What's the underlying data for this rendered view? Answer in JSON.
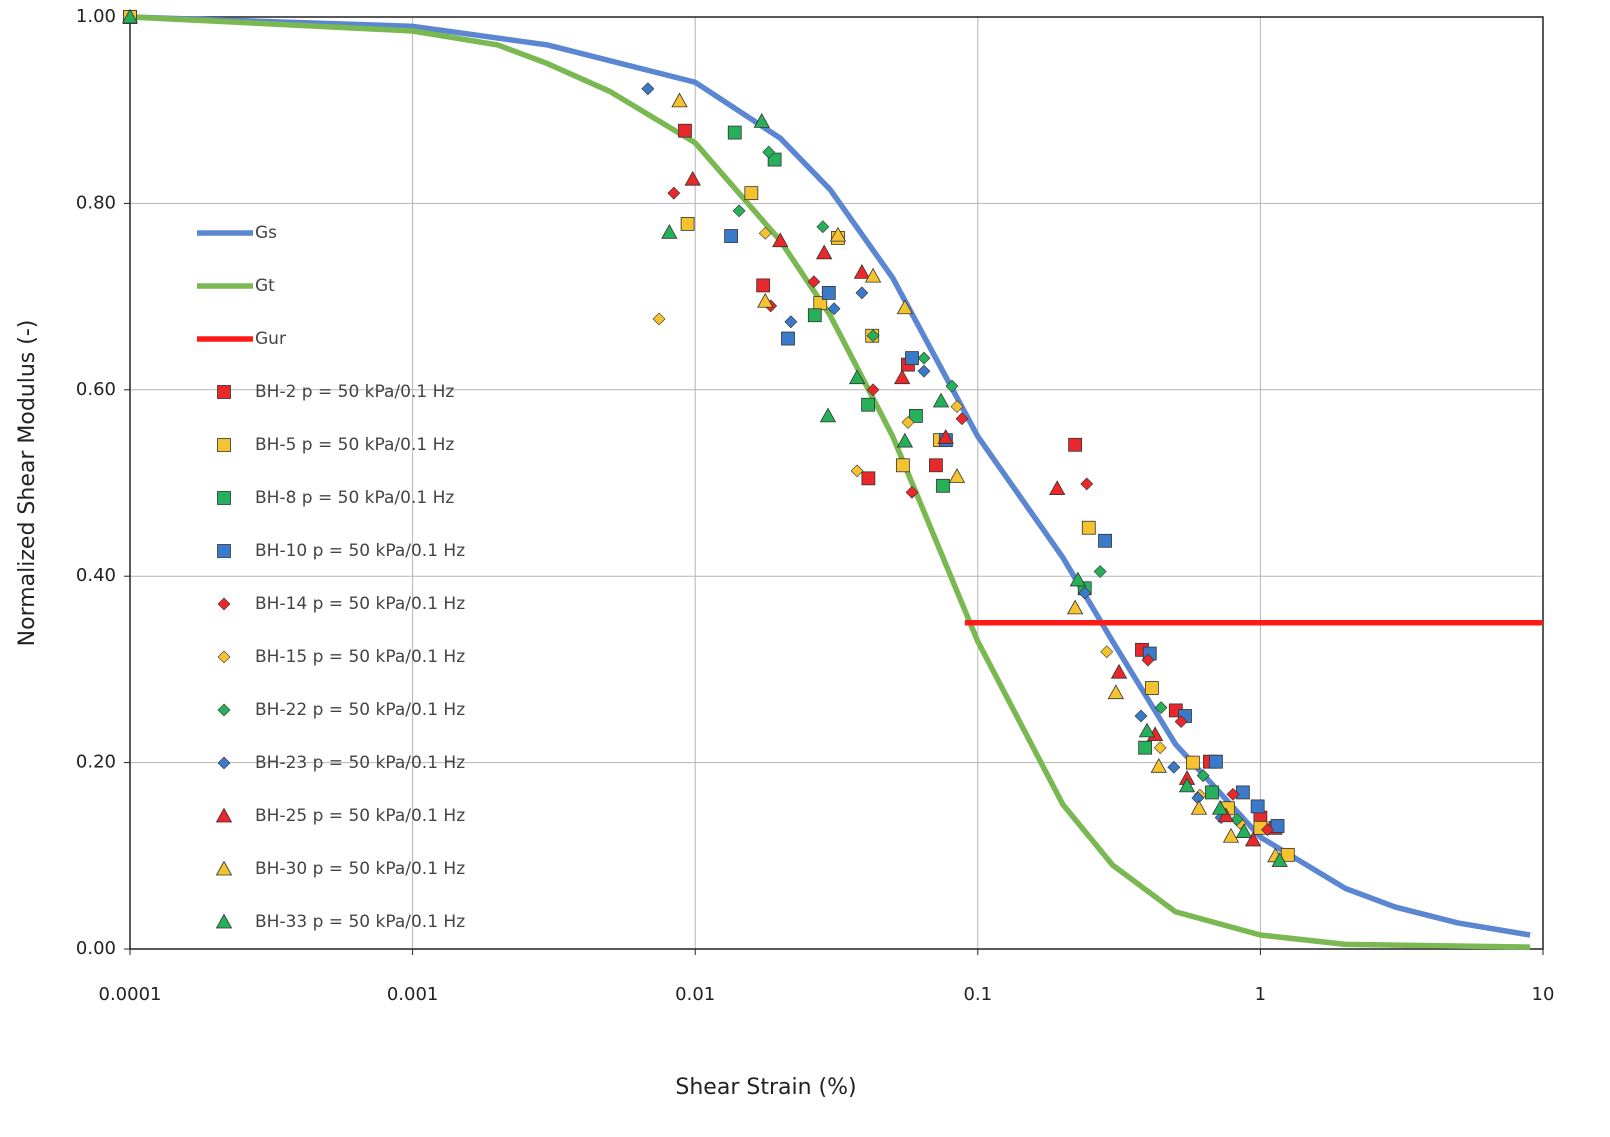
{
  "chart_data": {
    "type": "scatter",
    "x_label": "Shear Strain (%)",
    "y_label": "Normalized Shear Modulus (-)",
    "x_scale": "log",
    "xlim": [
      0.0001,
      10
    ],
    "xticks": [
      0.0001,
      0.001,
      0.01,
      0.1,
      1,
      10
    ],
    "ylim": [
      0,
      1
    ],
    "yticks": [
      {
        "value": 0,
        "label": "0.00"
      },
      {
        "value": 0.2,
        "label": "0.20"
      },
      {
        "value": 0.4,
        "label": "0.40"
      },
      {
        "value": 0.6,
        "label": "0.60"
      },
      {
        "value": 0.8,
        "label": "0.80"
      },
      {
        "value": 1,
        "label": "1.00"
      }
    ],
    "grid": true,
    "legend": "left",
    "series": [
      {
        "name": "Gs",
        "type": "line",
        "color": "#5b86d1",
        "x": [
          0.0001,
          0.001,
          0.003,
          0.01,
          0.02,
          0.03,
          0.05,
          0.1,
          0.2,
          0.3,
          0.5,
          1,
          2,
          3,
          5,
          9
        ],
        "values": [
          1.0,
          0.99,
          0.97,
          0.93,
          0.87,
          0.815,
          0.72,
          0.55,
          0.42,
          0.33,
          0.22,
          0.12,
          0.065,
          0.045,
          0.028,
          0.015
        ]
      },
      {
        "name": "Gt",
        "type": "line",
        "color": "#7ab852",
        "x": [
          0.0001,
          0.001,
          0.002,
          0.003,
          0.005,
          0.01,
          0.02,
          0.03,
          0.05,
          0.1,
          0.2,
          0.3,
          0.5,
          1,
          2,
          9
        ],
        "values": [
          1.0,
          0.985,
          0.97,
          0.95,
          0.92,
          0.865,
          0.76,
          0.68,
          0.55,
          0.33,
          0.155,
          0.09,
          0.04,
          0.015,
          0.005,
          0.002
        ]
      },
      {
        "name": "Gur",
        "type": "line",
        "color": "#ff1a1a",
        "x": [
          0.09,
          10
        ],
        "values": [
          0.35,
          0.35
        ]
      },
      {
        "name": "BH-2 p = 50 kPa/0.1 Hz",
        "type": "scatter",
        "marker": "square",
        "color": "#e8282a",
        "x": [
          0.0001,
          0.0092,
          0.0174,
          0.041,
          0.0566,
          0.0711,
          0.221,
          0.381,
          0.502,
          0.663,
          1.0,
          1.13
        ],
        "values": [
          1.0,
          0.878,
          0.712,
          0.505,
          0.627,
          0.519,
          0.541,
          0.321,
          0.256,
          0.201,
          0.141,
          0.13
        ]
      },
      {
        "name": "BH-5 p = 50 kPa/0.1 Hz",
        "type": "scatter",
        "marker": "square",
        "color": "#f5c230",
        "x": [
          0.0001,
          0.0094,
          0.0158,
          0.032,
          0.0277,
          0.0423,
          0.0543,
          0.0735,
          0.247,
          0.413,
          0.577,
          0.768,
          1.0,
          1.25
        ],
        "values": [
          1.0,
          0.778,
          0.811,
          0.763,
          0.693,
          0.658,
          0.519,
          0.546,
          0.452,
          0.28,
          0.2,
          0.151,
          0.13,
          0.101
        ]
      },
      {
        "name": "BH-8 p = 50 kPa/0.1 Hz",
        "type": "scatter",
        "marker": "square",
        "color": "#27b05a",
        "x": [
          0.0138,
          0.0191,
          0.0265,
          0.0409,
          0.0604,
          0.0753,
          0.239,
          0.391,
          0.674
        ],
        "values": [
          0.876,
          0.847,
          0.68,
          0.584,
          0.572,
          0.497,
          0.387,
          0.216,
          0.168
        ]
      },
      {
        "name": "BH-10 p = 50 kPa/0.1 Hz",
        "type": "scatter",
        "marker": "square",
        "color": "#3b7ac9",
        "x": [
          0.0134,
          0.0213,
          0.0297,
          0.0585,
          0.0771,
          0.282,
          0.406,
          0.541,
          0.696,
          0.867,
          0.978,
          1.15
        ],
        "values": [
          0.765,
          0.655,
          0.704,
          0.634,
          0.546,
          0.438,
          0.317,
          0.25,
          0.201,
          0.168,
          0.153,
          0.132
        ]
      },
      {
        "name": "BH-14 p = 50 kPa/0.1 Hz",
        "type": "scatter",
        "marker": "diamond",
        "color": "#e8282a",
        "x": [
          0.0084,
          0.0185,
          0.0263,
          0.0426,
          0.0585,
          0.0879,
          0.243,
          0.4,
          0.524,
          0.8,
          1.06
        ],
        "values": [
          0.811,
          0.69,
          0.716,
          0.6,
          0.49,
          0.569,
          0.499,
          0.31,
          0.244,
          0.166,
          0.128
        ]
      },
      {
        "name": "BH-15 p = 50 kPa/0.1 Hz",
        "type": "scatter",
        "marker": "diamond",
        "color": "#f5c230",
        "x": [
          0.00745,
          0.0177,
          0.0374,
          0.0566,
          0.0844,
          0.286,
          0.442,
          0.611,
          0.847
        ],
        "values": [
          0.676,
          0.768,
          0.513,
          0.565,
          0.582,
          0.319,
          0.216,
          0.165,
          0.135
        ]
      },
      {
        "name": "BH-22 p = 50 kPa/0.1 Hz",
        "type": "scatter",
        "marker": "diamond",
        "color": "#27b05a",
        "x": [
          0.0143,
          0.0182,
          0.0283,
          0.0426,
          0.0645,
          0.081,
          0.271,
          0.445,
          0.627,
          0.826
        ],
        "values": [
          0.792,
          0.855,
          0.775,
          0.658,
          0.634,
          0.604,
          0.405,
          0.259,
          0.186,
          0.139
        ]
      },
      {
        "name": "BH-23 p = 50 kPa/0.1 Hz",
        "type": "scatter",
        "marker": "diamond",
        "color": "#3b7ac9",
        "x": [
          0.0068,
          0.0218,
          0.031,
          0.0389,
          0.0645,
          0.239,
          0.378,
          0.494,
          0.601,
          0.726
        ],
        "values": [
          0.923,
          0.673,
          0.687,
          0.704,
          0.62,
          0.382,
          0.25,
          0.195,
          0.162,
          0.141
        ]
      },
      {
        "name": "BH-25 p = 50 kPa/0.1 Hz",
        "type": "scatter",
        "marker": "triangle",
        "color": "#e8282a",
        "x": [
          0.0098,
          0.02,
          0.0286,
          0.0389,
          0.054,
          0.077,
          0.191,
          0.316,
          0.424,
          0.55,
          0.755,
          0.942
        ],
        "values": [
          0.826,
          0.76,
          0.747,
          0.726,
          0.613,
          0.549,
          0.494,
          0.297,
          0.23,
          0.183,
          0.143,
          0.117
        ]
      },
      {
        "name": "BH-30 p = 50 kPa/0.1 Hz",
        "type": "scatter",
        "marker": "triangle",
        "color": "#f5c230",
        "x": [
          0.0088,
          0.0177,
          0.032,
          0.0426,
          0.0552,
          0.0844,
          0.221,
          0.308,
          0.437,
          0.606,
          0.787,
          1.13
        ],
        "values": [
          0.91,
          0.695,
          0.766,
          0.722,
          0.688,
          0.507,
          0.366,
          0.275,
          0.196,
          0.151,
          0.121,
          0.1
        ]
      },
      {
        "name": "BH-33 p = 50 kPa/0.1 Hz",
        "type": "scatter",
        "marker": "triangle",
        "color": "#27b05a",
        "x": [
          0.0001,
          0.0081,
          0.0172,
          0.0295,
          0.0374,
          0.0552,
          0.0741,
          0.226,
          0.397,
          0.55,
          0.72,
          0.875,
          1.17
        ],
        "values": [
          1.0,
          0.769,
          0.888,
          0.572,
          0.613,
          0.545,
          0.588,
          0.396,
          0.234,
          0.175,
          0.151,
          0.126,
          0.095
        ]
      }
    ]
  }
}
